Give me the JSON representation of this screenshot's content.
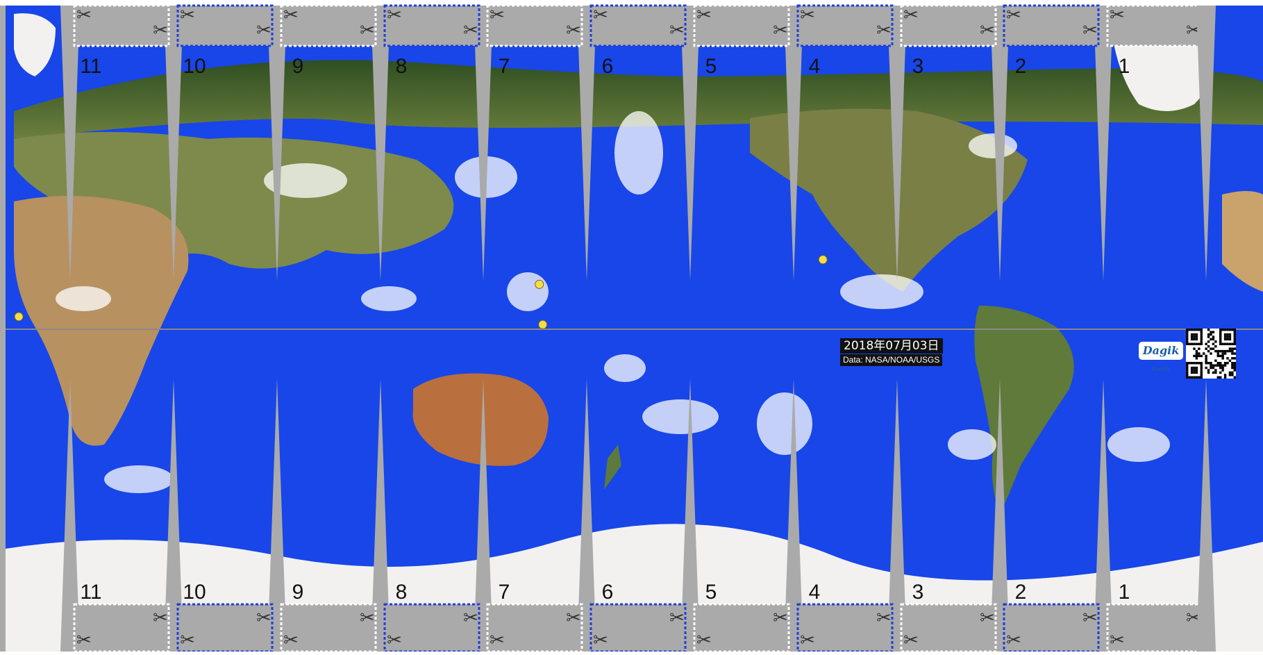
{
  "map": {
    "title": "2018年07月03日",
    "credit": "Data: NASA/NOAA/USGS",
    "logo_text": "Dagik",
    "logo_subtext": "Earth",
    "colors": {
      "ocean": "#1846e8",
      "gore_cut": "#aaaaaa",
      "ice": "#f3f2f1",
      "land": "#5f7a3a",
      "desert": "#c9a36b",
      "marker": "#f4dd4a",
      "cut_line": "#1f3fdc"
    },
    "icons": {
      "scissors": "✂",
      "cut_marker": "scissors-icon",
      "qr": "qr-code-icon"
    },
    "gores": [
      {
        "number": "1"
      },
      {
        "number": "2"
      },
      {
        "number": "3"
      },
      {
        "number": "4"
      },
      {
        "number": "5"
      },
      {
        "number": "6"
      },
      {
        "number": "7"
      },
      {
        "number": "8"
      },
      {
        "number": "9"
      },
      {
        "number": "10"
      },
      {
        "number": "11"
      }
    ],
    "event_markers": [
      {
        "lon": 123.5,
        "lat": 12.5
      },
      {
        "lon": 124.5,
        "lat": 1.3
      },
      {
        "lon": -155.3,
        "lat": 19.4
      },
      {
        "lon": -25.5,
        "lat": 3.5
      }
    ]
  }
}
